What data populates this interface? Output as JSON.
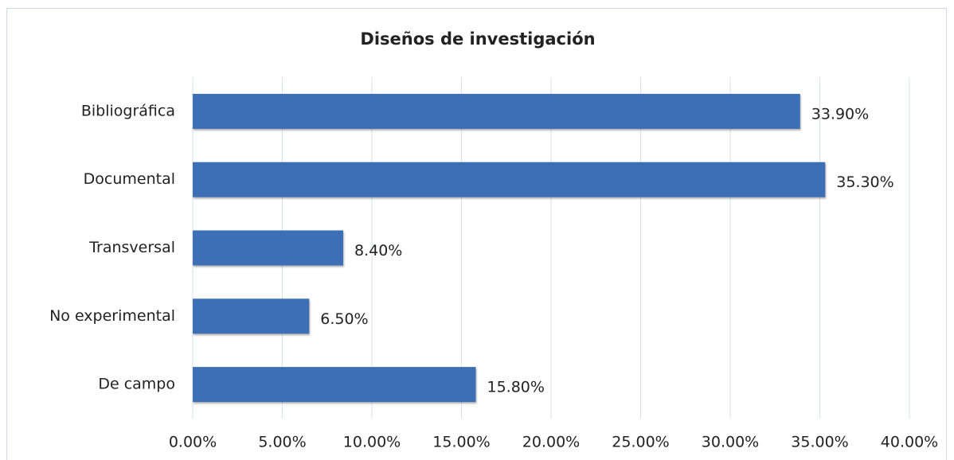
{
  "chart_data": {
    "type": "hbar",
    "title": "Diseños de investigación",
    "categories": [
      "Bibliográfica",
      "Documental",
      "Transversal",
      "No experimental",
      "De campo"
    ],
    "values": [
      33.9,
      35.3,
      8.4,
      6.5,
      15.8
    ],
    "value_labels": [
      "33.90%",
      "35.30%",
      "8.40%",
      "6.50%",
      "15.80%"
    ],
    "color": "#3d6fb6",
    "xlim": [
      0,
      40
    ],
    "xticks": [
      {
        "value": 0,
        "label": "0.00%"
      },
      {
        "value": 5,
        "label": "5.00%"
      },
      {
        "value": 10,
        "label": "10.00%"
      },
      {
        "value": 15,
        "label": "15.00%"
      },
      {
        "value": 20,
        "label": "20.00%"
      },
      {
        "value": 25,
        "label": "25.00%"
      },
      {
        "value": 30,
        "label": "30.00%"
      },
      {
        "value": 35,
        "label": "35.00%"
      },
      {
        "value": 40,
        "label": "40.00%"
      }
    ],
    "grid": true
  }
}
